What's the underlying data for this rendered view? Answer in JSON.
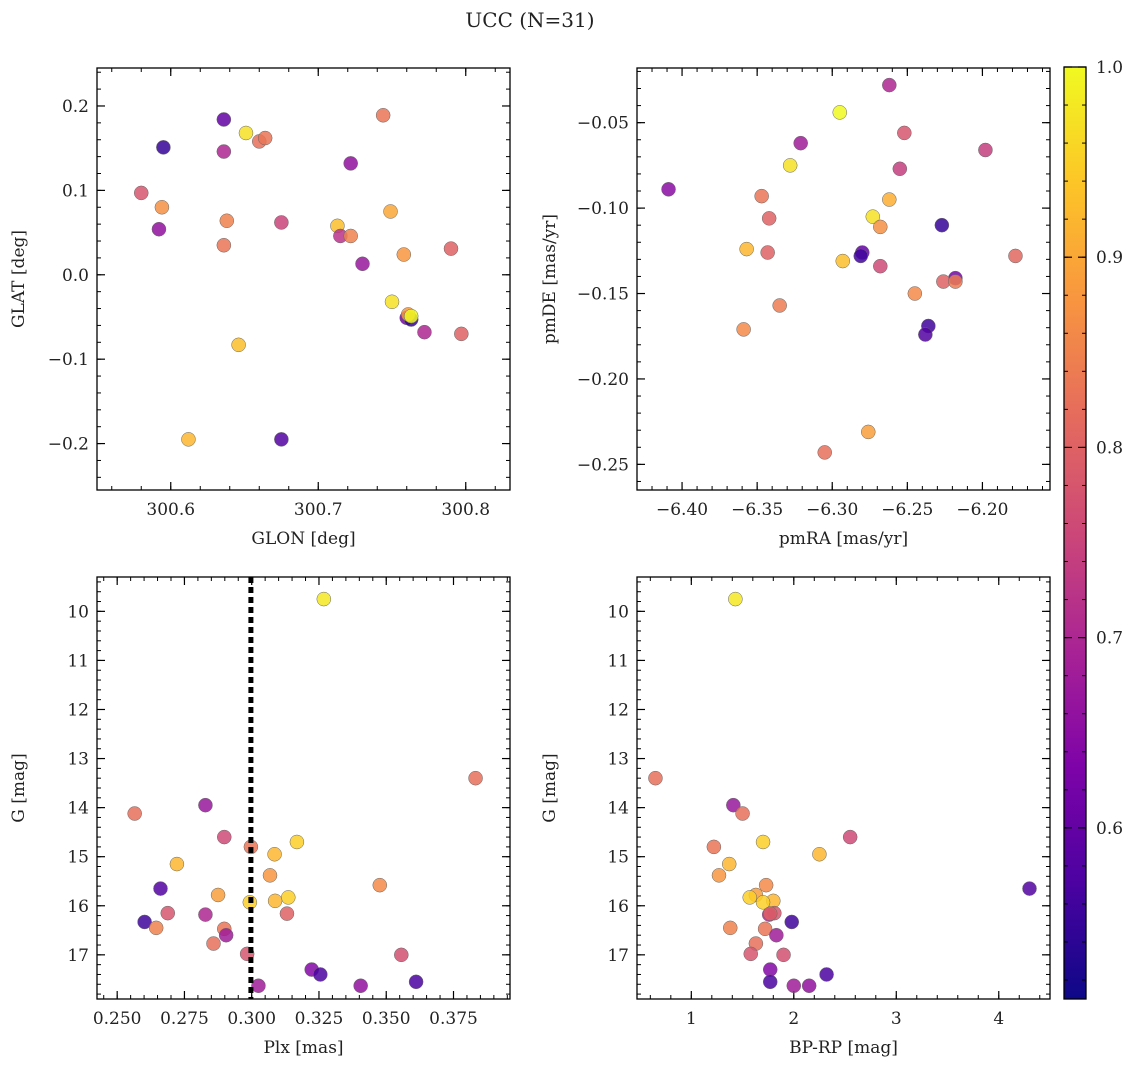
{
  "figure": {
    "title": "UCC (N=31)",
    "colorbar": {
      "colormap": "plasma",
      "range": [
        0.51,
        1.0
      ],
      "ticks": [
        0.6,
        0.7,
        0.8,
        0.9,
        1.0
      ],
      "tick_labels": [
        "0.6",
        "0.7",
        "0.8",
        "0.9",
        "1.0"
      ]
    }
  },
  "chart_data": [
    {
      "type": "scatter",
      "xlabel": "GLON [deg]",
      "ylabel": "GLAT [deg]",
      "xlim": [
        300.55,
        300.83
      ],
      "ylim": [
        -0.255,
        0.245
      ],
      "invert_y": false,
      "xticks": [
        300.6,
        300.7,
        300.8
      ],
      "xtick_labels": [
        "300.6",
        "300.7",
        "300.8"
      ],
      "yticks": [
        -0.2,
        -0.1,
        0.0,
        0.1,
        0.2
      ],
      "ytick_labels": [
        "−0.2",
        "−0.1",
        "0.0",
        "0.1",
        "0.2"
      ],
      "x_minor_step": 0.02,
      "y_minor_step": 0.02,
      "points": [
        {
          "x": 300.595,
          "y": 0.151,
          "c": 0.55
        },
        {
          "x": 300.636,
          "y": 0.184,
          "c": 0.6
        },
        {
          "x": 300.651,
          "y": 0.168,
          "c": 0.97
        },
        {
          "x": 300.66,
          "y": 0.158,
          "c": 0.82
        },
        {
          "x": 300.664,
          "y": 0.162,
          "c": 0.83
        },
        {
          "x": 300.636,
          "y": 0.146,
          "c": 0.7
        },
        {
          "x": 300.744,
          "y": 0.189,
          "c": 0.83
        },
        {
          "x": 300.722,
          "y": 0.132,
          "c": 0.66
        },
        {
          "x": 300.58,
          "y": 0.097,
          "c": 0.78
        },
        {
          "x": 300.594,
          "y": 0.08,
          "c": 0.87
        },
        {
          "x": 300.592,
          "y": 0.054,
          "c": 0.66
        },
        {
          "x": 300.638,
          "y": 0.064,
          "c": 0.85
        },
        {
          "x": 300.636,
          "y": 0.035,
          "c": 0.83
        },
        {
          "x": 300.675,
          "y": 0.062,
          "c": 0.75
        },
        {
          "x": 300.713,
          "y": 0.058,
          "c": 0.93
        },
        {
          "x": 300.715,
          "y": 0.046,
          "c": 0.72
        },
        {
          "x": 300.722,
          "y": 0.046,
          "c": 0.85
        },
        {
          "x": 300.749,
          "y": 0.075,
          "c": 0.9
        },
        {
          "x": 300.73,
          "y": 0.013,
          "c": 0.67
        },
        {
          "x": 300.758,
          "y": 0.024,
          "c": 0.88
        },
        {
          "x": 300.79,
          "y": 0.031,
          "c": 0.8
        },
        {
          "x": 300.75,
          "y": -0.032,
          "c": 0.97
        },
        {
          "x": 300.76,
          "y": -0.051,
          "c": 0.62
        },
        {
          "x": 300.763,
          "y": -0.053,
          "c": 0.55
        },
        {
          "x": 300.761,
          "y": -0.047,
          "c": 0.88
        },
        {
          "x": 300.763,
          "y": -0.049,
          "c": 1.0
        },
        {
          "x": 300.772,
          "y": -0.068,
          "c": 0.7
        },
        {
          "x": 300.797,
          "y": -0.07,
          "c": 0.8
        },
        {
          "x": 300.646,
          "y": -0.083,
          "c": 0.93
        },
        {
          "x": 300.612,
          "y": -0.195,
          "c": 0.92
        },
        {
          "x": 300.675,
          "y": -0.195,
          "c": 0.58
        }
      ]
    },
    {
      "type": "scatter",
      "xlabel": "pmRA [mas/yr]",
      "ylabel": "pmDE [mas/yr]",
      "xlim": [
        -6.43,
        -6.155
      ],
      "ylim": [
        -0.265,
        -0.018
      ],
      "invert_y": false,
      "xticks": [
        -6.4,
        -6.35,
        -6.3,
        -6.25,
        -6.2
      ],
      "xtick_labels": [
        "−6.40",
        "−6.35",
        "−6.30",
        "−6.25",
        "−6.20"
      ],
      "yticks": [
        -0.25,
        -0.2,
        -0.15,
        -0.1,
        -0.05
      ],
      "ytick_labels": [
        "−0.25",
        "−0.20",
        "−0.15",
        "−0.10",
        "−0.05"
      ],
      "x_minor_step": 0.01,
      "y_minor_step": 0.01,
      "points": [
        {
          "x": -6.409,
          "y": -0.089,
          "c": 0.65
        },
        {
          "x": -6.262,
          "y": -0.028,
          "c": 0.7
        },
        {
          "x": -6.295,
          "y": -0.044,
          "c": 1.0
        },
        {
          "x": -6.252,
          "y": -0.056,
          "c": 0.78
        },
        {
          "x": -6.321,
          "y": -0.062,
          "c": 0.68
        },
        {
          "x": -6.198,
          "y": -0.066,
          "c": 0.74
        },
        {
          "x": -6.328,
          "y": -0.075,
          "c": 0.97
        },
        {
          "x": -6.255,
          "y": -0.077,
          "c": 0.74
        },
        {
          "x": -6.347,
          "y": -0.093,
          "c": 0.83
        },
        {
          "x": -6.262,
          "y": -0.095,
          "c": 0.91
        },
        {
          "x": -6.273,
          "y": -0.105,
          "c": 0.97
        },
        {
          "x": -6.342,
          "y": -0.106,
          "c": 0.8
        },
        {
          "x": -6.268,
          "y": -0.111,
          "c": 0.87
        },
        {
          "x": -6.227,
          "y": -0.11,
          "c": 0.55
        },
        {
          "x": -6.357,
          "y": -0.124,
          "c": 0.92
        },
        {
          "x": -6.343,
          "y": -0.126,
          "c": 0.8
        },
        {
          "x": -6.28,
          "y": -0.126,
          "c": 0.6
        },
        {
          "x": -6.281,
          "y": -0.128,
          "c": 0.56
        },
        {
          "x": -6.293,
          "y": -0.131,
          "c": 0.93
        },
        {
          "x": -6.268,
          "y": -0.134,
          "c": 0.76
        },
        {
          "x": -6.178,
          "y": -0.128,
          "c": 0.81
        },
        {
          "x": -6.218,
          "y": -0.141,
          "c": 0.62
        },
        {
          "x": -6.226,
          "y": -0.143,
          "c": 0.8
        },
        {
          "x": -6.218,
          "y": -0.143,
          "c": 0.84
        },
        {
          "x": -6.245,
          "y": -0.15,
          "c": 0.86
        },
        {
          "x": -6.335,
          "y": -0.157,
          "c": 0.84
        },
        {
          "x": -6.359,
          "y": -0.171,
          "c": 0.86
        },
        {
          "x": -6.236,
          "y": -0.169,
          "c": 0.56
        },
        {
          "x": -6.238,
          "y": -0.174,
          "c": 0.58
        },
        {
          "x": -6.276,
          "y": -0.231,
          "c": 0.89
        },
        {
          "x": -6.305,
          "y": -0.243,
          "c": 0.82
        }
      ]
    },
    {
      "type": "scatter",
      "xlabel": "Plx [mas]",
      "ylabel": "G [mag]",
      "xlim": [
        0.2425,
        0.396
      ],
      "ylim": [
        9.3,
        17.9
      ],
      "invert_y": true,
      "xticks": [
        0.25,
        0.275,
        0.3,
        0.325,
        0.35,
        0.375
      ],
      "xtick_labels": [
        "0.250",
        "0.275",
        "0.300",
        "0.325",
        "0.350",
        "0.375"
      ],
      "yticks": [
        10,
        11,
        12,
        13,
        14,
        15,
        16,
        17
      ],
      "ytick_labels": [
        "10",
        "11",
        "12",
        "13",
        "14",
        "15",
        "16",
        "17"
      ],
      "x_minor_step": 0.005,
      "y_minor_step": 0.2,
      "vline": {
        "x": 0.2997,
        "style": "dotted"
      },
      "points": [
        {
          "x": 0.3268,
          "y": 9.75,
          "c": 0.98
        },
        {
          "x": 0.3832,
          "y": 13.4,
          "c": 0.82
        },
        {
          "x": 0.2828,
          "y": 13.95,
          "c": 0.67
        },
        {
          "x": 0.2565,
          "y": 14.12,
          "c": 0.82
        },
        {
          "x": 0.2898,
          "y": 14.6,
          "c": 0.76
        },
        {
          "x": 0.3168,
          "y": 14.7,
          "c": 0.95
        },
        {
          "x": 0.2997,
          "y": 14.8,
          "c": 0.83
        },
        {
          "x": 0.3085,
          "y": 14.95,
          "c": 0.92
        },
        {
          "x": 0.2722,
          "y": 15.15,
          "c": 0.92
        },
        {
          "x": 0.3068,
          "y": 15.38,
          "c": 0.88
        },
        {
          "x": 0.3476,
          "y": 15.58,
          "c": 0.86
        },
        {
          "x": 0.2661,
          "y": 15.65,
          "c": 0.58
        },
        {
          "x": 0.2875,
          "y": 15.78,
          "c": 0.89
        },
        {
          "x": 0.3136,
          "y": 15.83,
          "c": 0.95
        },
        {
          "x": 0.3087,
          "y": 15.9,
          "c": 0.92
        },
        {
          "x": 0.2993,
          "y": 15.93,
          "c": 0.95
        },
        {
          "x": 0.2688,
          "y": 16.15,
          "c": 0.78
        },
        {
          "x": 0.2828,
          "y": 16.18,
          "c": 0.7
        },
        {
          "x": 0.3131,
          "y": 16.16,
          "c": 0.8
        },
        {
          "x": 0.2602,
          "y": 16.33,
          "c": 0.56
        },
        {
          "x": 0.2645,
          "y": 16.45,
          "c": 0.85
        },
        {
          "x": 0.2898,
          "y": 16.47,
          "c": 0.83
        },
        {
          "x": 0.2905,
          "y": 16.6,
          "c": 0.68
        },
        {
          "x": 0.2858,
          "y": 16.77,
          "c": 0.82
        },
        {
          "x": 0.2983,
          "y": 16.98,
          "c": 0.78
        },
        {
          "x": 0.3556,
          "y": 17.0,
          "c": 0.77
        },
        {
          "x": 0.3223,
          "y": 17.3,
          "c": 0.64
        },
        {
          "x": 0.3255,
          "y": 17.4,
          "c": 0.57
        },
        {
          "x": 0.3611,
          "y": 17.55,
          "c": 0.57
        },
        {
          "x": 0.3025,
          "y": 17.63,
          "c": 0.68
        },
        {
          "x": 0.3405,
          "y": 17.63,
          "c": 0.66
        }
      ]
    },
    {
      "type": "scatter",
      "xlabel": "BP-RP [mag]",
      "ylabel": "G [mag]",
      "xlim": [
        0.47,
        4.5
      ],
      "ylim": [
        9.3,
        17.9
      ],
      "invert_y": true,
      "xticks": [
        1,
        2,
        3,
        4
      ],
      "xtick_labels": [
        "1",
        "2",
        "3",
        "4"
      ],
      "yticks": [
        10,
        11,
        12,
        13,
        14,
        15,
        16,
        17
      ],
      "ytick_labels": [
        "10",
        "11",
        "12",
        "13",
        "14",
        "15",
        "16",
        "17"
      ],
      "x_minor_step": 0.2,
      "y_minor_step": 0.2,
      "points": [
        {
          "x": 1.43,
          "y": 9.75,
          "c": 0.98
        },
        {
          "x": 0.65,
          "y": 13.4,
          "c": 0.82
        },
        {
          "x": 1.41,
          "y": 13.95,
          "c": 0.67
        },
        {
          "x": 1.5,
          "y": 14.12,
          "c": 0.82
        },
        {
          "x": 2.55,
          "y": 14.6,
          "c": 0.76
        },
        {
          "x": 1.7,
          "y": 14.7,
          "c": 0.95
        },
        {
          "x": 1.22,
          "y": 14.8,
          "c": 0.83
        },
        {
          "x": 2.25,
          "y": 14.95,
          "c": 0.92
        },
        {
          "x": 1.37,
          "y": 15.15,
          "c": 0.92
        },
        {
          "x": 1.27,
          "y": 15.38,
          "c": 0.88
        },
        {
          "x": 1.73,
          "y": 15.58,
          "c": 0.86
        },
        {
          "x": 4.3,
          "y": 15.65,
          "c": 0.58
        },
        {
          "x": 1.63,
          "y": 15.78,
          "c": 0.89
        },
        {
          "x": 1.57,
          "y": 15.83,
          "c": 0.95
        },
        {
          "x": 1.8,
          "y": 15.9,
          "c": 0.92
        },
        {
          "x": 1.7,
          "y": 15.93,
          "c": 0.95
        },
        {
          "x": 1.81,
          "y": 16.15,
          "c": 0.78
        },
        {
          "x": 1.76,
          "y": 16.18,
          "c": 0.7
        },
        {
          "x": 1.77,
          "y": 16.16,
          "c": 0.8
        },
        {
          "x": 1.98,
          "y": 16.33,
          "c": 0.56
        },
        {
          "x": 1.38,
          "y": 16.45,
          "c": 0.85
        },
        {
          "x": 1.72,
          "y": 16.47,
          "c": 0.83
        },
        {
          "x": 1.83,
          "y": 16.6,
          "c": 0.68
        },
        {
          "x": 1.63,
          "y": 16.77,
          "c": 0.82
        },
        {
          "x": 1.58,
          "y": 16.98,
          "c": 0.78
        },
        {
          "x": 1.9,
          "y": 17.0,
          "c": 0.77
        },
        {
          "x": 1.77,
          "y": 17.3,
          "c": 0.64
        },
        {
          "x": 2.32,
          "y": 17.4,
          "c": 0.57
        },
        {
          "x": 1.77,
          "y": 17.55,
          "c": 0.57
        },
        {
          "x": 2.0,
          "y": 17.63,
          "c": 0.68
        },
        {
          "x": 2.15,
          "y": 17.63,
          "c": 0.66
        }
      ]
    }
  ]
}
